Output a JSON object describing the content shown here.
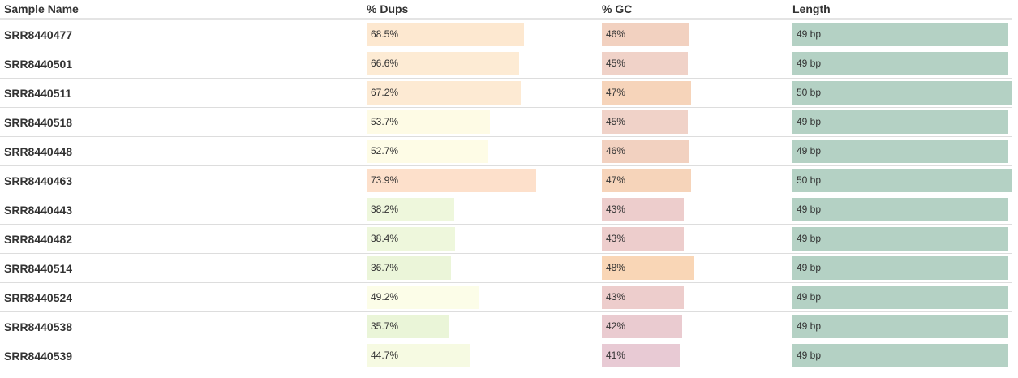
{
  "table": {
    "headers": {
      "sample_name": "Sample Name",
      "dups": "% Dups",
      "gc": "% GC",
      "length": "Length"
    },
    "rows": [
      {
        "sample": "SRR8440477",
        "dups": "68.5%",
        "dups_value": 68.5,
        "dups_color": "#fde8d0",
        "gc": "46%",
        "gc_value": 46,
        "gc_color": "#f2d1c0",
        "length": "49 bp",
        "length_value": 49,
        "length_color": "#b4d1c4"
      },
      {
        "sample": "SRR8440501",
        "dups": "66.6%",
        "dups_value": 66.6,
        "dups_color": "#fdebd4",
        "gc": "45%",
        "gc_value": 45,
        "gc_color": "#f0d2c8",
        "length": "49 bp",
        "length_value": 49,
        "length_color": "#b4d1c4"
      },
      {
        "sample": "SRR8440511",
        "dups": "67.2%",
        "dups_value": 67.2,
        "dups_color": "#fdead3",
        "gc": "47%",
        "gc_value": 47,
        "gc_color": "#f6d4ba",
        "length": "50 bp",
        "length_value": 50,
        "length_color": "#b4d1c4"
      },
      {
        "sample": "SRR8440518",
        "dups": "53.7%",
        "dups_value": 53.7,
        "dups_color": "#fefbe5",
        "gc": "45%",
        "gc_value": 45,
        "gc_color": "#f0d2c8",
        "length": "49 bp",
        "length_value": 49,
        "length_color": "#b4d1c4"
      },
      {
        "sample": "SRR8440448",
        "dups": "52.7%",
        "dups_value": 52.7,
        "dups_color": "#fefce6",
        "gc": "46%",
        "gc_value": 46,
        "gc_color": "#f2d1c0",
        "length": "49 bp",
        "length_value": 49,
        "length_color": "#b4d1c4"
      },
      {
        "sample": "SRR8440463",
        "dups": "73.9%",
        "dups_value": 73.9,
        "dups_color": "#fde0cb",
        "gc": "47%",
        "gc_value": 47,
        "gc_color": "#f6d4ba",
        "length": "50 bp",
        "length_value": 50,
        "length_color": "#b4d1c4"
      },
      {
        "sample": "SRR8440443",
        "dups": "38.2%",
        "dups_value": 38.2,
        "dups_color": "#eef7dc",
        "gc": "43%",
        "gc_value": 43,
        "gc_color": "#edcdcc",
        "length": "49 bp",
        "length_value": 49,
        "length_color": "#b4d1c4"
      },
      {
        "sample": "SRR8440482",
        "dups": "38.4%",
        "dups_value": 38.4,
        "dups_color": "#eef7dc",
        "gc": "43%",
        "gc_value": 43,
        "gc_color": "#edcdcc",
        "length": "49 bp",
        "length_value": 49,
        "length_color": "#b4d1c4"
      },
      {
        "sample": "SRR8440514",
        "dups": "36.7%",
        "dups_value": 36.7,
        "dups_color": "#ebf5d9",
        "gc": "48%",
        "gc_value": 48,
        "gc_color": "#f9d6b6",
        "length": "49 bp",
        "length_value": 49,
        "length_color": "#b4d1c4"
      },
      {
        "sample": "SRR8440524",
        "dups": "49.2%",
        "dups_value": 49.2,
        "dups_color": "#fcfde8",
        "gc": "43%",
        "gc_value": 43,
        "gc_color": "#edcdcc",
        "length": "49 bp",
        "length_value": 49,
        "length_color": "#b4d1c4"
      },
      {
        "sample": "SRR8440538",
        "dups": "35.7%",
        "dups_value": 35.7,
        "dups_color": "#eaf5d8",
        "gc": "42%",
        "gc_value": 42,
        "gc_color": "#eacbd0",
        "length": "49 bp",
        "length_value": 49,
        "length_color": "#b4d1c4"
      },
      {
        "sample": "SRR8440539",
        "dups": "44.7%",
        "dups_value": 44.7,
        "dups_color": "#f6faE2",
        "gc": "41%",
        "gc_value": 41,
        "gc_color": "#e8cad4",
        "length": "49 bp",
        "length_value": 49,
        "length_color": "#b4d1c4"
      }
    ]
  }
}
